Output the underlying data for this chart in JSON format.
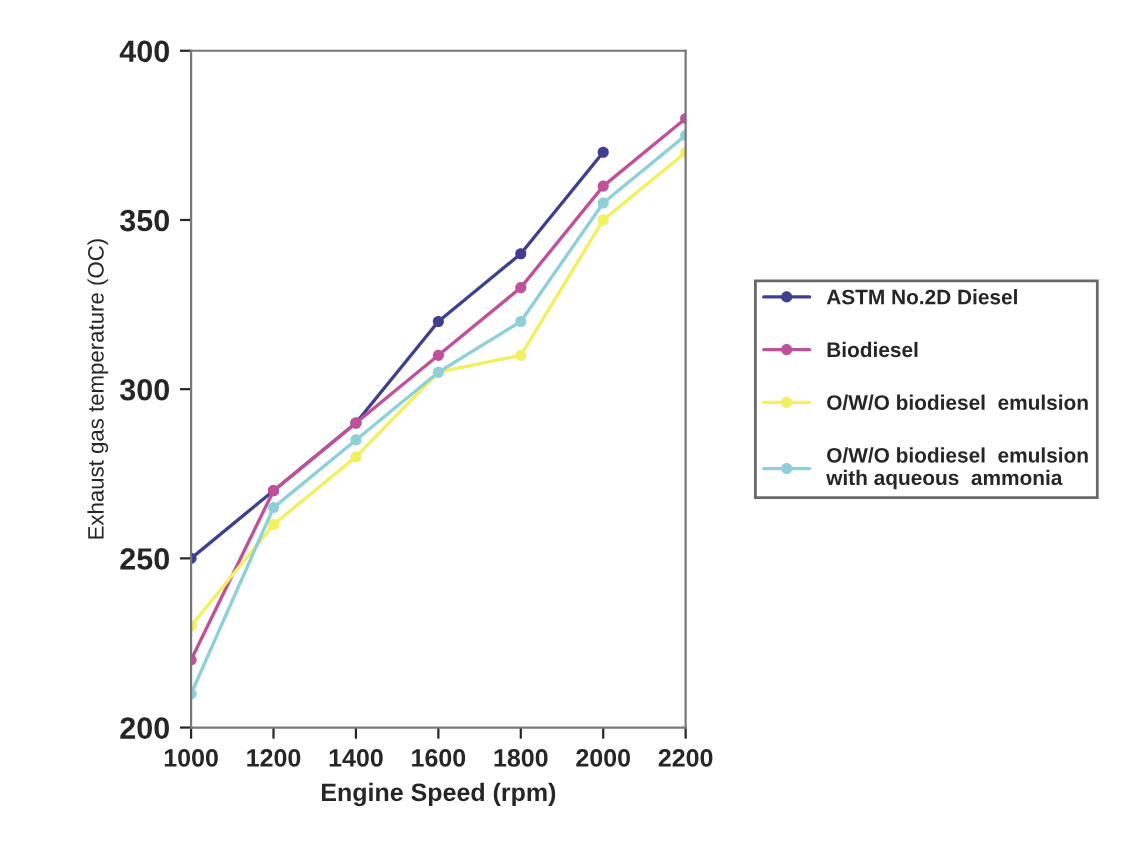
{
  "chart_data": {
    "type": "line",
    "xlabel": "Engine Speed (rpm)",
    "ylabel": "Exhaust gas temperature (OC)",
    "x": [
      1000,
      1200,
      1400,
      1600,
      1800,
      2000,
      2200
    ],
    "series": [
      {
        "name": "ASTM No.2D Diesel",
        "color": "#3f3f8f",
        "values": [
          250,
          270,
          290,
          320,
          340,
          370,
          null
        ]
      },
      {
        "name": "Biodiesel",
        "color": "#c0509a",
        "values": [
          220,
          270,
          290,
          310,
          330,
          360,
          380
        ]
      },
      {
        "name": "O/W/O biodiesel  emulsion",
        "color": "#f0f060",
        "values": [
          230,
          260,
          280,
          305,
          310,
          350,
          370
        ]
      },
      {
        "name": "O/W/O biodiesel  emulsion\nwith aqueous  ammonia",
        "color": "#8fd0d8",
        "values": [
          210,
          265,
          285,
          305,
          320,
          355,
          375
        ]
      }
    ],
    "xlim": [
      1000,
      2200
    ],
    "xticks": [
      1000,
      1200,
      1400,
      1600,
      1800,
      2000,
      2200
    ],
    "ylim": [
      200,
      400
    ],
    "yticks": [
      200,
      250,
      300,
      350,
      400
    ],
    "grid": false,
    "legend": "right",
    "marker": "circle",
    "line_style": "solid"
  }
}
